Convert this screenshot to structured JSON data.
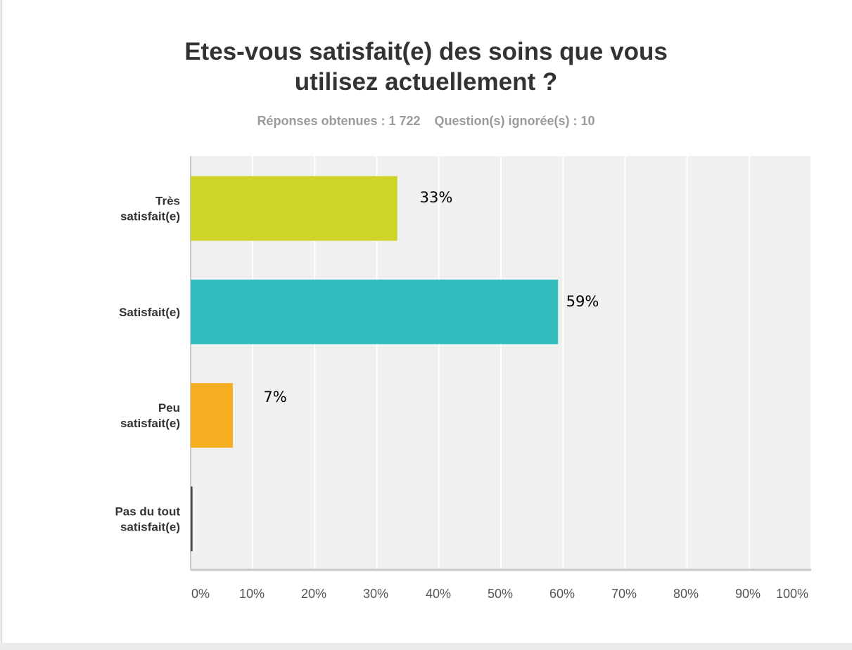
{
  "title_lines": [
    "Etes-vous satisfait(e) des soins que vous",
    "utilisez actuellement ?"
  ],
  "stats": {
    "responses": "Réponses obtenues : 1 722",
    "skipped": "Question(s) ignorée(s) : 10"
  },
  "chart_data": {
    "type": "bar",
    "orientation": "horizontal",
    "title": "Etes-vous satisfait(e) des soins que vous utilisez actuellement ?",
    "categories": [
      [
        "Très",
        "satisfait(e)"
      ],
      [
        "Satisfait(e)"
      ],
      [
        "Peu",
        "satisfait(e)"
      ],
      [
        "Pas du tout",
        "satisfait(e)"
      ]
    ],
    "values": [
      33.3,
      59.2,
      6.8,
      0.3
    ],
    "data_labels": [
      "33%",
      "59%",
      "7%",
      ""
    ],
    "colors": [
      "#cfd428",
      "#33bdbf",
      "#f5ae21",
      "#4a4a3f"
    ],
    "xlim": [
      0,
      100
    ],
    "ticks": [
      "0%",
      "10%",
      "20%",
      "30%",
      "40%",
      "50%",
      "60%",
      "70%",
      "80%",
      "90%",
      "100%"
    ],
    "grid": true,
    "legend": "none",
    "plot_background": "#f0f0f0"
  }
}
